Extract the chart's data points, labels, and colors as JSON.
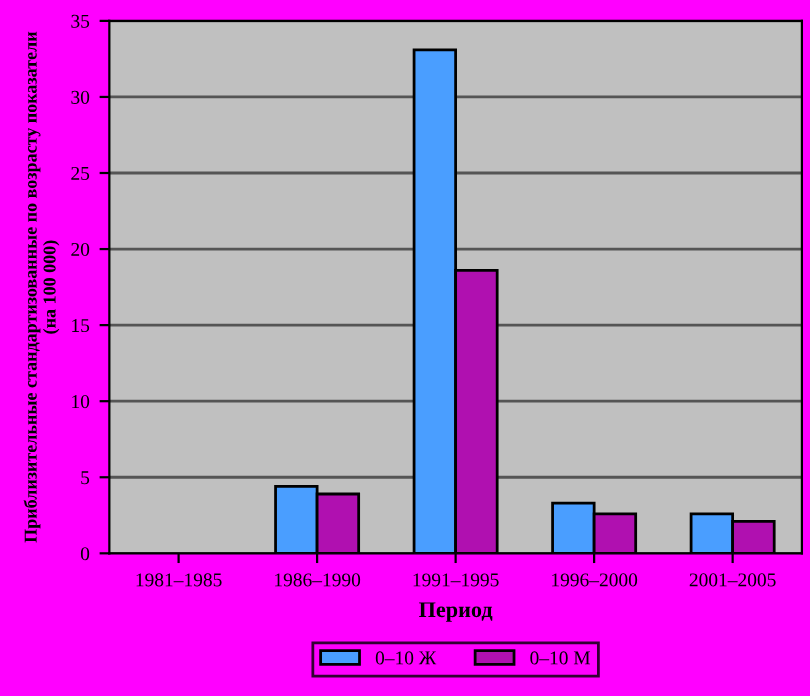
{
  "chart_data": {
    "type": "bar",
    "xlabel": "Период",
    "ylabel": "Приблизительные стандартизованные по возрасту показатели\n(на 100 000)",
    "categories": [
      "1981–1985",
      "1986–1990",
      "1991–1995",
      "1996–2000",
      "2001–2005"
    ],
    "series": [
      {
        "name": "0–10 Ж",
        "color": "#4a9eff",
        "values": [
          null,
          4.4,
          33.1,
          3.3,
          2.6
        ]
      },
      {
        "name": "0–10 М",
        "color": "#b010b0",
        "values": [
          null,
          3.9,
          18.6,
          2.6,
          2.1
        ]
      }
    ],
    "ylim": [
      0,
      35
    ],
    "yticks": [
      0,
      5,
      10,
      15,
      20,
      25,
      30,
      35
    ],
    "grid": "y",
    "legend": "bottom"
  }
}
